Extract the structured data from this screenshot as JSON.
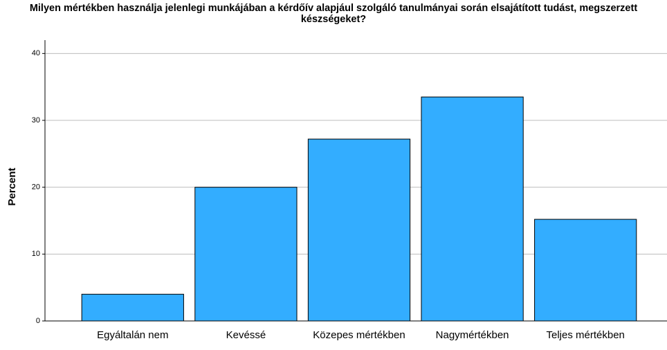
{
  "chart_data": {
    "type": "bar",
    "title": "Milyen mértékben használja jelenlegi munkájában a kérdőív alapjául szolgáló tanulmányai során elsajátított tudást, megszerzett készségeket?",
    "y_label": "Percent",
    "categories": [
      "Egyáltalán nem",
      "Kevéssé",
      "Közepes mértékben",
      "Nagymértékben",
      "Teljes mértékben"
    ],
    "values": [
      4.0,
      20.0,
      27.2,
      33.5,
      15.2
    ],
    "color": "#33adff",
    "ylim": [
      0,
      42
    ],
    "yticks": [
      0,
      10,
      20,
      30,
      40
    ],
    "grid": true
  }
}
